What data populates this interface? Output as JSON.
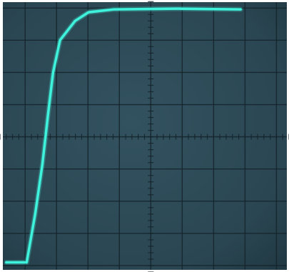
{
  "chart_data": {
    "type": "line",
    "x": [
      -4.6,
      -3.95,
      -3.68,
      -3.45,
      -3.27,
      -3.11,
      -2.89,
      -2.41,
      -1.98,
      -1.18,
      0.86,
      2.86
    ],
    "series": [
      {
        "color": "#3ff2dc",
        "values": [
          -3.9,
          -3.9,
          -2.4,
          -0.85,
          0.7,
          2.0,
          3.0,
          3.6,
          3.87,
          3.96,
          3.98,
          3.96
        ]
      }
    ],
    "xlim": [
      -4.8,
      4.4
    ],
    "ylim": [
      -4.2,
      4.25
    ],
    "grid": true
  }
}
